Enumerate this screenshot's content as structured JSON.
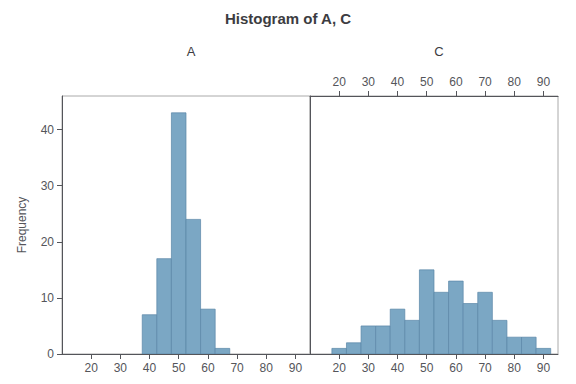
{
  "title": "Histogram of A, C",
  "chart_data": [
    {
      "type": "histogram",
      "title": "A",
      "bins": [
        37.5,
        42.5,
        47.5,
        52.5,
        57.5,
        62.5,
        67.5
      ],
      "values": [
        7,
        17,
        43,
        24,
        8,
        1
      ],
      "color": "#7ba7c4",
      "xlim": [
        10,
        95
      ],
      "xticks": [
        20,
        30,
        40,
        50,
        60,
        70,
        80,
        90
      ],
      "ylim": [
        0,
        46
      ],
      "yticks": [
        0,
        10,
        20,
        30,
        40
      ],
      "ylabel": "Frequency",
      "grid": false
    },
    {
      "type": "histogram",
      "title": "C",
      "bins": [
        17.5,
        22.5,
        27.5,
        32.5,
        37.5,
        42.5,
        47.5,
        52.5,
        57.5,
        62.5,
        67.5,
        72.5,
        77.5,
        82.5,
        87.5,
        92.5
      ],
      "values": [
        1,
        2,
        5,
        5,
        8,
        6,
        15,
        11,
        13,
        9,
        11,
        6,
        3,
        3,
        1
      ],
      "color": "#7ba7c4",
      "xlim": [
        10,
        95
      ],
      "xticks": [
        20,
        30,
        40,
        50,
        60,
        70,
        80,
        90
      ],
      "ylim": [
        0,
        46
      ],
      "yticks": [
        0,
        10,
        20,
        30,
        40
      ],
      "grid": false,
      "tick_labels": "x"
    }
  ]
}
